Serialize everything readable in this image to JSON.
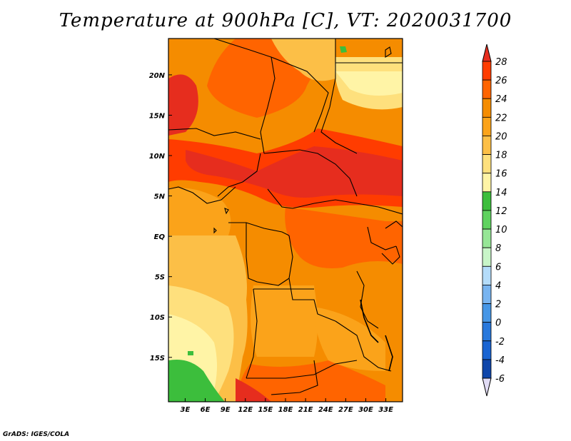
{
  "title": "Temperature at 900hPa [C], VT: 2020031700",
  "credit": "GrADS: IGES/COLA",
  "map": {
    "x_ticks": [
      {
        "lon": 3,
        "label": "3E"
      },
      {
        "lon": 6,
        "label": "6E"
      },
      {
        "lon": 9,
        "label": "9E"
      },
      {
        "lon": 12,
        "label": "12E"
      },
      {
        "lon": 15,
        "label": "15E"
      },
      {
        "lon": 18,
        "label": "18E"
      },
      {
        "lon": 21,
        "label": "21E"
      },
      {
        "lon": 24,
        "label": "24E"
      },
      {
        "lon": 27,
        "label": "27E"
      },
      {
        "lon": 30,
        "label": "30E"
      },
      {
        "lon": 33,
        "label": "33E"
      }
    ],
    "y_ticks": [
      {
        "lat": 20,
        "label": "20N"
      },
      {
        "lat": 15,
        "label": "15N"
      },
      {
        "lat": 10,
        "label": "10N"
      },
      {
        "lat": 5,
        "label": "5N"
      },
      {
        "lat": 0,
        "label": "EQ"
      },
      {
        "lat": -5,
        "label": "5S"
      },
      {
        "lat": -10,
        "label": "10S"
      },
      {
        "lat": -15,
        "label": "15S"
      }
    ]
  },
  "colorbar": {
    "levels": [
      {
        "label": "28",
        "color": "#ff3c00"
      },
      {
        "label": "26",
        "color": "#ff6400"
      },
      {
        "label": "24",
        "color": "#f58c00"
      },
      {
        "label": "22",
        "color": "#fba31a"
      },
      {
        "label": "20",
        "color": "#fcbf47"
      },
      {
        "label": "18",
        "color": "#fee07d"
      },
      {
        "label": "16",
        "color": "#fff4a6"
      },
      {
        "label": "14",
        "color": "#3cbe3c"
      },
      {
        "label": "12",
        "color": "#5fd25f"
      },
      {
        "label": "10",
        "color": "#96e696"
      },
      {
        "label": "8",
        "color": "#c8f5c8"
      },
      {
        "label": "6",
        "color": "#b4dcfa"
      },
      {
        "label": "4",
        "color": "#78b4f0"
      },
      {
        "label": "2",
        "color": "#4696e6"
      },
      {
        "label": "0",
        "color": "#2878dc"
      },
      {
        "label": "-2",
        "color": "#1964d2"
      },
      {
        "label": "-4",
        "color": "#0f46aa"
      },
      {
        "label": "-6",
        "color": "#0a2882"
      }
    ],
    "top_overflow_color": "#e62d1e",
    "bottom_overflow_color": "#e1dcf5"
  }
}
